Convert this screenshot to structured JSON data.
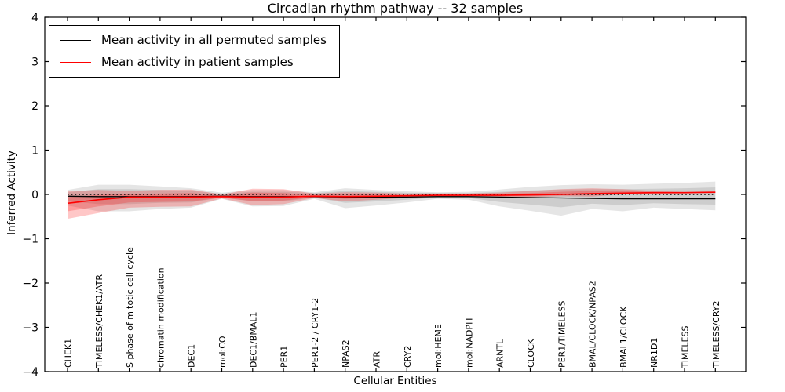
{
  "chart_data": {
    "type": "line",
    "title": "Circadian rhythm pathway -- 32 samples",
    "xlabel": "Cellular Entities",
    "ylabel": "Inferred Activity",
    "ylim": [
      -4,
      4
    ],
    "yticks": [
      4,
      3,
      2,
      1,
      0,
      -1,
      -2,
      -3,
      -4
    ],
    "ytick_labels": [
      "4",
      "3",
      "2",
      "1",
      "0",
      "−1",
      "−2",
      "−3",
      "−4"
    ],
    "grid": false,
    "legend_position": "upper left",
    "categories": [
      "CHEK1",
      "TIMELESS/CHEK1/ATR",
      "S phase of mitotic cell cycle",
      "chromatin modification",
      "DEC1",
      "mol:CO",
      "DEC1/BMAL1",
      "PER1",
      "PER1-2 / CRY1-2",
      "NPAS2",
      "ATR",
      "CRY2",
      "mol:HEME",
      "mol:NADPH",
      "ARNTL",
      "CLOCK",
      "PER1/TIMELESS",
      "BMAL/CLOCK/NPAS2",
      "BMAL1/CLOCK",
      "NR1D1",
      "TIMELESS",
      "TIMELESS/CRY2"
    ],
    "series": [
      {
        "key": "permuted-mean-line",
        "name": "Mean activity in all permuted samples",
        "color": "#000000",
        "style": "solid",
        "width": 1.3,
        "values": [
          -0.04,
          -0.05,
          -0.05,
          -0.05,
          -0.05,
          -0.04,
          -0.05,
          -0.05,
          -0.05,
          -0.06,
          -0.06,
          -0.06,
          -0.05,
          -0.05,
          -0.06,
          -0.07,
          -0.08,
          -0.09,
          -0.1,
          -0.1,
          -0.1,
          -0.1
        ]
      },
      {
        "key": "patient-mean-line",
        "name": "Mean activity in patient samples",
        "color": "#ff0000",
        "style": "solid",
        "width": 1.6,
        "values": [
          -0.2,
          -0.12,
          -0.06,
          -0.06,
          -0.06,
          -0.05,
          -0.06,
          -0.06,
          -0.04,
          -0.05,
          -0.04,
          -0.03,
          -0.02,
          -0.02,
          -0.02,
          -0.01,
          0.0,
          0.02,
          0.03,
          0.04,
          0.04,
          0.05
        ]
      },
      {
        "key": "zero-reference-line",
        "name": "zero reference",
        "color": "#000000",
        "style": "dotted",
        "width": 1.4,
        "values": [
          0,
          0,
          0,
          0,
          0,
          0,
          0,
          0,
          0,
          0,
          0,
          0,
          0,
          0,
          0,
          0,
          0,
          0,
          0,
          0,
          0,
          0
        ]
      }
    ],
    "bands": [
      {
        "key": "gray-band-outer",
        "name": "permuted samples range (outer)",
        "color": "#000000",
        "opacity": 0.1,
        "upper": [
          0.1,
          0.22,
          0.22,
          0.18,
          0.14,
          0.04,
          0.1,
          0.1,
          0.05,
          0.14,
          0.1,
          0.07,
          0.05,
          0.06,
          0.11,
          0.17,
          0.21,
          0.23,
          0.22,
          0.24,
          0.26,
          0.29
        ],
        "lower": [
          -0.25,
          -0.38,
          -0.38,
          -0.33,
          -0.3,
          -0.1,
          -0.27,
          -0.26,
          -0.1,
          -0.31,
          -0.25,
          -0.18,
          -0.1,
          -0.12,
          -0.27,
          -0.37,
          -0.48,
          -0.33,
          -0.38,
          -0.3,
          -0.33,
          -0.36
        ]
      },
      {
        "key": "gray-band-inner",
        "name": "permuted samples range (inner)",
        "color": "#000000",
        "opacity": 0.1,
        "upper": [
          0.05,
          0.12,
          0.12,
          0.1,
          0.08,
          0.02,
          0.06,
          0.06,
          0.03,
          0.08,
          0.06,
          0.04,
          0.03,
          0.03,
          0.06,
          0.09,
          0.11,
          0.12,
          0.12,
          0.13,
          0.14,
          0.16
        ],
        "lower": [
          -0.15,
          -0.22,
          -0.22,
          -0.19,
          -0.18,
          -0.07,
          -0.16,
          -0.16,
          -0.07,
          -0.19,
          -0.16,
          -0.12,
          -0.07,
          -0.08,
          -0.17,
          -0.23,
          -0.29,
          -0.21,
          -0.24,
          -0.2,
          -0.22,
          -0.23
        ]
      },
      {
        "key": "red-band-outer",
        "name": "patient samples range (outer)",
        "color": "#ff0000",
        "opacity": 0.22,
        "upper": [
          0.07,
          0.1,
          0.08,
          0.1,
          0.11,
          0.0,
          0.13,
          0.12,
          0.02,
          0.05,
          0.04,
          0.02,
          0.02,
          0.02,
          0.04,
          0.08,
          0.12,
          0.14,
          0.12,
          0.08,
          0.06,
          0.07
        ],
        "lower": [
          -0.55,
          -0.42,
          -0.3,
          -0.28,
          -0.27,
          -0.09,
          -0.24,
          -0.22,
          -0.08,
          -0.16,
          -0.12,
          -0.08,
          -0.05,
          -0.04,
          -0.06,
          -0.06,
          -0.04,
          -0.05,
          0.0,
          0.01,
          0.02,
          0.03
        ]
      },
      {
        "key": "red-band-inner",
        "name": "patient samples range (inner)",
        "color": "#ff0000",
        "opacity": 0.22,
        "upper": [
          -0.06,
          -0.01,
          0.01,
          0.02,
          0.03,
          -0.02,
          0.04,
          0.03,
          -0.01,
          0.0,
          0.0,
          -0.01,
          0.0,
          0.0,
          0.01,
          0.03,
          0.06,
          0.08,
          0.08,
          0.06,
          0.05,
          0.06
        ],
        "lower": [
          -0.38,
          -0.27,
          -0.18,
          -0.17,
          -0.16,
          -0.07,
          -0.15,
          -0.14,
          -0.06,
          -0.1,
          -0.08,
          -0.06,
          -0.04,
          -0.03,
          -0.04,
          -0.04,
          -0.02,
          -0.02,
          0.01,
          0.02,
          0.03,
          0.04
        ]
      }
    ]
  }
}
